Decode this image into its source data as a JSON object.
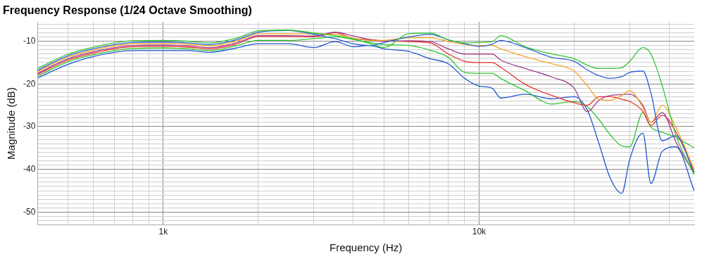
{
  "chart_data": {
    "type": "line",
    "title": "Frequency Response (1/24 Octave Smoothing)",
    "xlabel": "Frequency (Hz)",
    "ylabel": "Magnitude (dB)",
    "log": "x",
    "grid": true,
    "legend": false,
    "marker": "none",
    "x": [
      400,
      500,
      600,
      700,
      800,
      1000,
      1200,
      1400,
      1700,
      2000,
      2500,
      3000,
      3500,
      4000,
      4500,
      5000,
      6000,
      7000,
      8000,
      9000,
      10000,
      11000,
      11700,
      14000,
      17000,
      20000,
      22000,
      24000,
      26000,
      28300,
      30000,
      33000,
      35000,
      38000,
      42000,
      48000
    ],
    "xlim": [
      400,
      48000
    ],
    "ylim": [
      -53,
      -5.5
    ],
    "xticks": [
      {
        "value": 500,
        "label": null
      },
      {
        "value": 600,
        "label": null
      },
      {
        "value": 700,
        "label": null
      },
      {
        "value": 800,
        "label": null
      },
      {
        "value": 900,
        "label": null
      },
      {
        "value": 1000,
        "label": "1k"
      },
      {
        "value": 2000,
        "label": null
      },
      {
        "value": 3000,
        "label": null
      },
      {
        "value": 4000,
        "label": null
      },
      {
        "value": 5000,
        "label": null
      },
      {
        "value": 6000,
        "label": null
      },
      {
        "value": 7000,
        "label": null
      },
      {
        "value": 8000,
        "label": null
      },
      {
        "value": 9000,
        "label": null
      },
      {
        "value": 10000,
        "label": "10k"
      },
      {
        "value": 20000,
        "label": null
      },
      {
        "value": 30000,
        "label": null
      },
      {
        "value": 40000,
        "label": null
      }
    ],
    "yticks": [
      {
        "value": -53,
        "label": null
      },
      {
        "value": -52,
        "label": null
      },
      {
        "value": -51,
        "label": null
      },
      -50,
      {
        "value": -49,
        "label": null
      },
      {
        "value": -48,
        "label": null
      },
      {
        "value": -47,
        "label": null
      },
      {
        "value": -46,
        "label": null
      },
      {
        "value": -45,
        "label": null
      },
      {
        "value": -44,
        "label": null
      },
      {
        "value": -43,
        "label": null
      },
      {
        "value": -42,
        "label": null
      },
      {
        "value": -41,
        "label": null
      },
      -40,
      {
        "value": -39,
        "label": null
      },
      {
        "value": -38,
        "label": null
      },
      {
        "value": -37,
        "label": null
      },
      {
        "value": -36,
        "label": null
      },
      {
        "value": -35,
        "label": null
      },
      {
        "value": -34,
        "label": null
      },
      {
        "value": -33,
        "label": null
      },
      {
        "value": -32,
        "label": null
      },
      {
        "value": -31,
        "label": null
      },
      -30,
      {
        "value": -29,
        "label": null
      },
      {
        "value": -28,
        "label": null
      },
      {
        "value": -27,
        "label": null
      },
      {
        "value": -26,
        "label": null
      },
      {
        "value": -25,
        "label": null
      },
      {
        "value": -24,
        "label": null
      },
      {
        "value": -23,
        "label": null
      },
      {
        "value": -22,
        "label": null
      },
      {
        "value": -21,
        "label": null
      },
      -20,
      {
        "value": -19,
        "label": null
      },
      {
        "value": -18,
        "label": null
      },
      {
        "value": -17,
        "label": null
      },
      {
        "value": -16,
        "label": null
      },
      {
        "value": -15,
        "label": null
      },
      {
        "value": -14,
        "label": null
      },
      {
        "value": -13,
        "label": null
      },
      {
        "value": -12,
        "label": null
      },
      {
        "value": -11,
        "label": null
      },
      -10,
      {
        "value": -9,
        "label": null
      },
      {
        "value": -8,
        "label": null
      },
      {
        "value": -7,
        "label": null
      },
      {
        "value": -6,
        "label": null
      }
    ],
    "series": [
      {
        "color": "#33c633",
        "values": [
          -16.4,
          -13.0,
          -11.4,
          -10.4,
          -9.9,
          -9.8,
          -10.0,
          -10.4,
          -9.3,
          -7.6,
          -7.4,
          -8.1,
          -8.7,
          -9.5,
          -10.5,
          -11.5,
          -8.2,
          -8.1,
          -9.7,
          -10.4,
          -10.3,
          -10.1,
          -8.7,
          -11.3,
          -13.0,
          -14.1,
          -15.6,
          -16.4,
          -16.4,
          -16.2,
          -14.7,
          -11.5,
          -13.0,
          -20.4,
          -32.0,
          -41.3
        ]
      },
      {
        "color": "#2b5fd4",
        "values": [
          -16.8,
          -13.4,
          -11.8,
          -10.8,
          -10.3,
          -10.2,
          -10.4,
          -10.8,
          -9.7,
          -7.9,
          -7.5,
          -8.4,
          -9.4,
          -10.6,
          -11.0,
          -10.3,
          -9.0,
          -8.4,
          -9.7,
          -10.6,
          -11.2,
          -10.7,
          -9.8,
          -11.5,
          -13.8,
          -14.7,
          -16.7,
          -18.1,
          -18.7,
          -18.3,
          -17.3,
          -17.0,
          -22.1,
          -33.3,
          -32.1,
          -41.0
        ]
      },
      {
        "color": "#f5a627",
        "values": [
          -17.1,
          -13.7,
          -12.1,
          -11.1,
          -10.6,
          -10.5,
          -10.7,
          -11.1,
          -10.0,
          -8.3,
          -8.3,
          -8.3,
          -8.4,
          -9.3,
          -9.8,
          -9.8,
          -9.2,
          -9.2,
          -10.1,
          -10.7,
          -11.0,
          -11.0,
          -11.8,
          -13.6,
          -15.3,
          -17.0,
          -20.4,
          -23.6,
          -23.8,
          -22.7,
          -21.6,
          -25.5,
          -29.0,
          -25.0,
          -30.2,
          -40.0
        ]
      },
      {
        "color": "#a13c8c",
        "values": [
          -17.5,
          -14.1,
          -12.5,
          -11.5,
          -11.0,
          -10.9,
          -11.1,
          -11.5,
          -10.4,
          -8.7,
          -8.7,
          -8.8,
          -7.9,
          -8.8,
          -9.6,
          -10.0,
          -9.9,
          -10.1,
          -11.8,
          -13.0,
          -13.0,
          -13.0,
          -14.4,
          -16.4,
          -18.4,
          -21.0,
          -26.5,
          -23.8,
          -22.7,
          -22.5,
          -22.4,
          -25.0,
          -29.0,
          -26.7,
          -33.6,
          -41.0
        ]
      },
      {
        "color": "#e8302a",
        "values": [
          -17.8,
          -14.4,
          -12.8,
          -11.8,
          -11.3,
          -11.2,
          -11.4,
          -11.8,
          -10.7,
          -8.9,
          -8.9,
          -9.0,
          -8.0,
          -9.4,
          -9.6,
          -9.9,
          -10.1,
          -10.4,
          -13.0,
          -14.7,
          -15.0,
          -15.0,
          -16.1,
          -20.1,
          -22.7,
          -24.4,
          -25.0,
          -23.0,
          -23.0,
          -23.6,
          -24.1,
          -26.4,
          -29.7,
          -27.3,
          -31.2,
          -40.5
        ]
      },
      {
        "color": "#2fc42f",
        "values": [
          -18.2,
          -14.8,
          -13.2,
          -12.2,
          -11.7,
          -11.6,
          -11.8,
          -12.2,
          -11.1,
          -9.8,
          -9.8,
          -9.4,
          -9.0,
          -9.6,
          -10.3,
          -10.8,
          -11.0,
          -12.1,
          -13.8,
          -17.3,
          -17.5,
          -17.5,
          -18.7,
          -21.6,
          -24.7,
          -24.1,
          -25.3,
          -28.4,
          -31.9,
          -34.5,
          -34.7,
          -26.7,
          -30.1,
          -31.3,
          -32.5,
          -35.0
        ]
      },
      {
        "color": "#1f55cf",
        "values": [
          -18.6,
          -15.4,
          -13.6,
          -12.6,
          -12.2,
          -12.2,
          -12.2,
          -12.6,
          -11.6,
          -10.6,
          -10.6,
          -11.5,
          -10.1,
          -11.3,
          -11.0,
          -11.8,
          -12.4,
          -14.1,
          -15.3,
          -18.7,
          -20.5,
          -21.0,
          -23.3,
          -22.4,
          -23.5,
          -23.0,
          -26.1,
          -34.1,
          -42.0,
          -45.6,
          -37.6,
          -31.5,
          -43.3,
          -35.8,
          -34.7,
          -45.0
        ]
      }
    ]
  }
}
